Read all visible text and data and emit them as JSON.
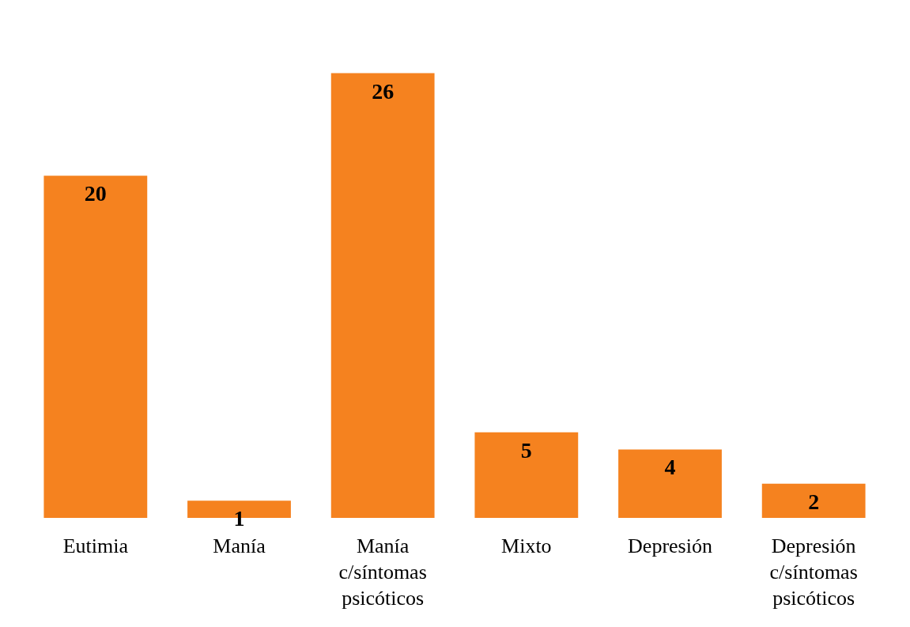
{
  "chart_data": {
    "type": "bar",
    "categories": [
      "Eutimia",
      "Manía",
      "Manía c/síntomas psicóticos",
      "Mixto",
      "Depresión",
      "Depresión c/síntomas psicóticos"
    ],
    "values": [
      20,
      1,
      26,
      5,
      4,
      2
    ],
    "color": "#f5821f",
    "data_labels": true
  }
}
